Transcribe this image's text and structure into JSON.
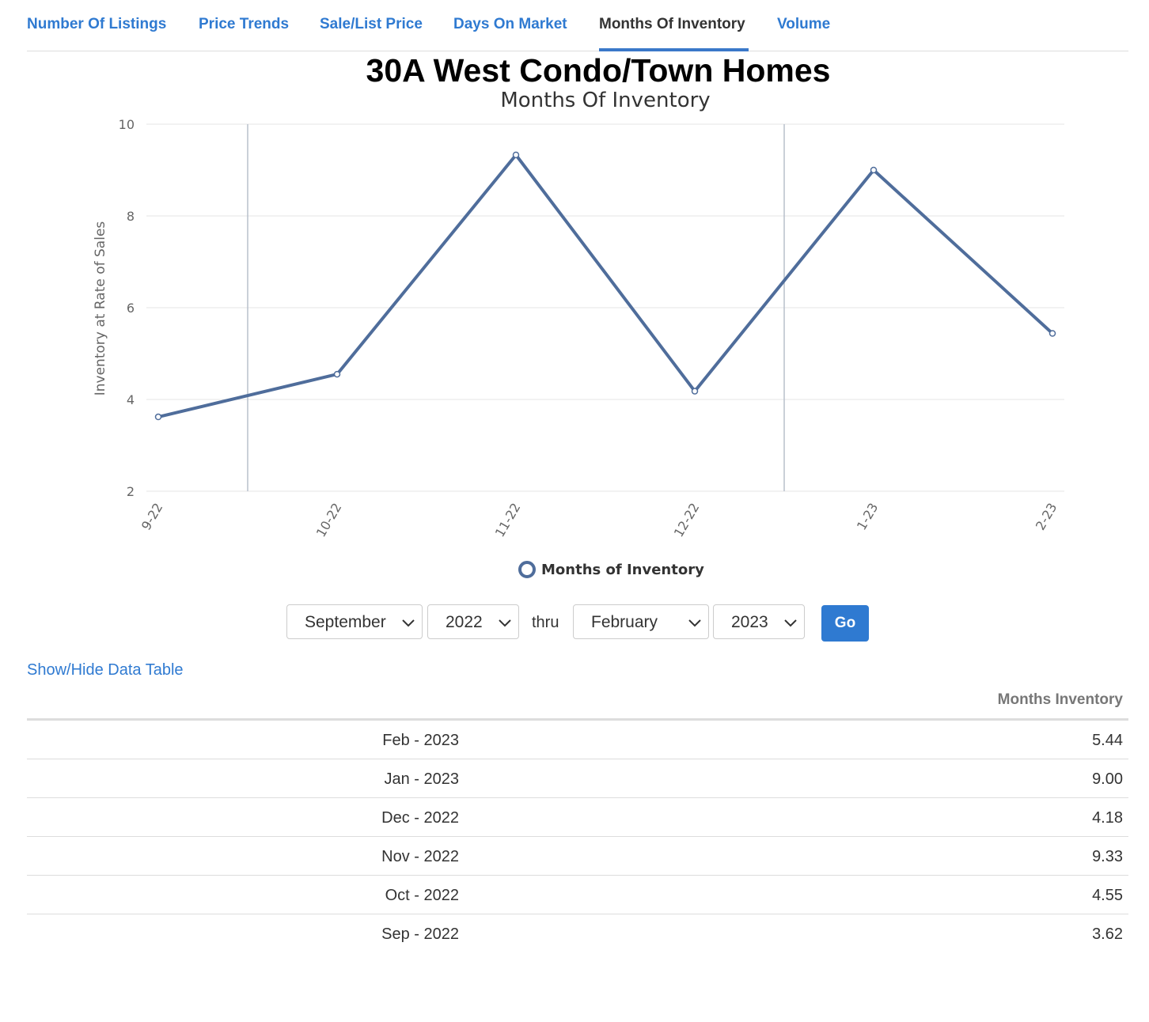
{
  "tabs": [
    {
      "label": "Number Of Listings",
      "active": false
    },
    {
      "label": "Price Trends",
      "active": false
    },
    {
      "label": "Sale/List Price",
      "active": false
    },
    {
      "label": "Days On Market",
      "active": false
    },
    {
      "label": "Months Of Inventory",
      "active": true
    },
    {
      "label": "Volume",
      "active": false
    }
  ],
  "page_title": "30A West Condo/Town Homes",
  "chart_data": {
    "type": "line",
    "title": "Months Of Inventory",
    "ylabel": "Inventory at Rate of Sales",
    "xlabel": "",
    "categories": [
      "9-22",
      "10-22",
      "11-22",
      "12-22",
      "1-23",
      "2-23"
    ],
    "series": [
      {
        "name": "Months of Inventory",
        "values": [
          3.62,
          4.55,
          9.33,
          4.18,
          9.0,
          5.44
        ],
        "color": "#4f6d9b"
      }
    ],
    "ylim": [
      2,
      10
    ],
    "yticks": [
      2,
      4,
      6,
      8,
      10
    ],
    "grid": true,
    "legend": "bottom-center"
  },
  "controls": {
    "from_month": "September",
    "from_year": "2022",
    "thru_label": "thru",
    "to_month": "February",
    "to_year": "2023",
    "go_label": "Go"
  },
  "toggle_label": "Show/Hide Data Table",
  "table": {
    "column_header": "Months Inventory",
    "rows": [
      {
        "month": "Feb - 2023",
        "value": "5.44"
      },
      {
        "month": "Jan - 2023",
        "value": "9.00"
      },
      {
        "month": "Dec - 2022",
        "value": "4.18"
      },
      {
        "month": "Nov - 2022",
        "value": "9.33"
      },
      {
        "month": "Oct - 2022",
        "value": "4.55"
      },
      {
        "month": "Sep - 2022",
        "value": "3.62"
      }
    ]
  },
  "colors": {
    "accent": "#2f7ad1",
    "series": "#4f6d9b"
  }
}
